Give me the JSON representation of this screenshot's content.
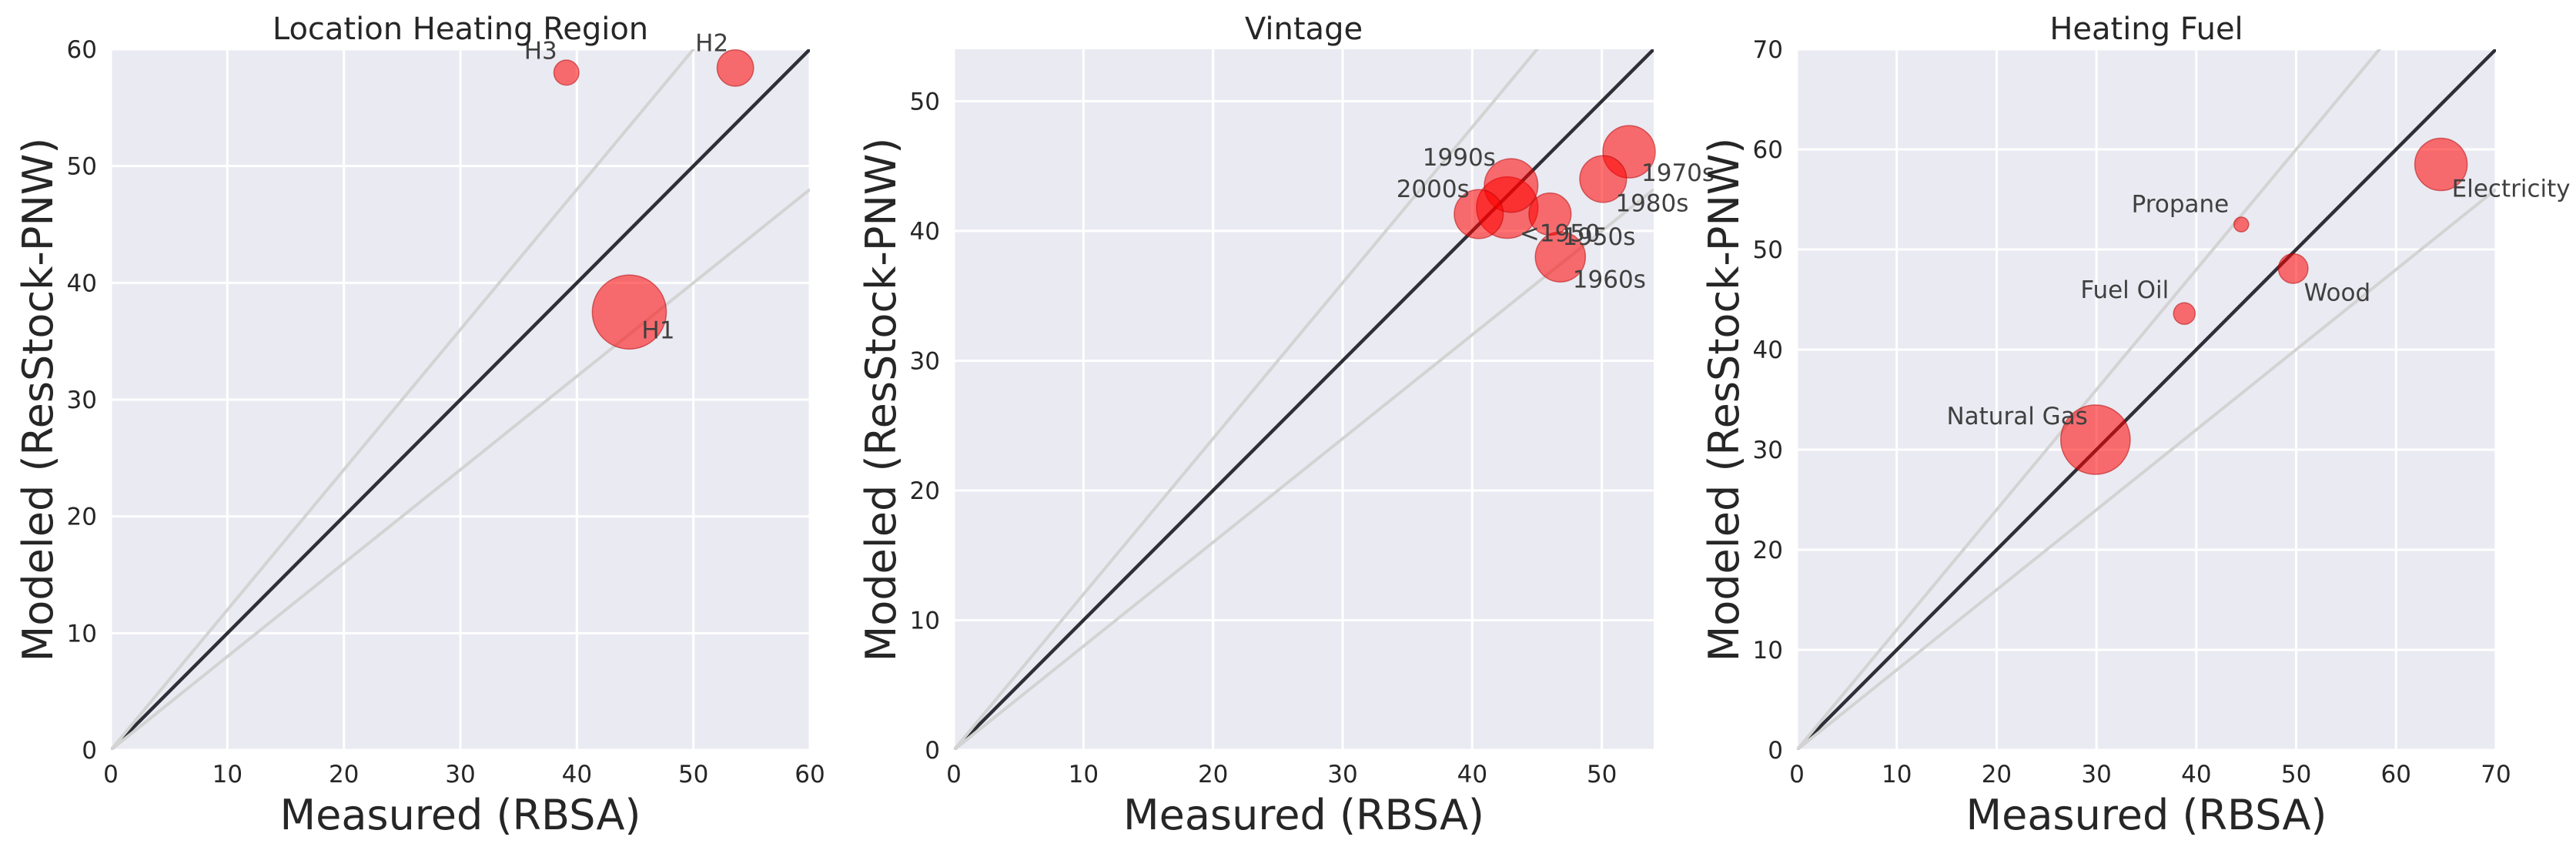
{
  "colors": {
    "point": "#ff0000",
    "axes_background": "#eaeaf2",
    "grid": "#ffffff",
    "identity_line": "#2f2f38",
    "reference_lines": "#d3d3d3"
  },
  "chart_data": [
    {
      "type": "scatter",
      "title": "Location Heating Region",
      "xlabel": "Measured (RBSA)",
      "ylabel": "Modeled (ResStock-PNW)",
      "xlim": [
        0,
        60
      ],
      "ylim": [
        0,
        60
      ],
      "xticks": [
        0,
        10,
        20,
        30,
        40,
        50,
        60
      ],
      "yticks": [
        0,
        10,
        20,
        30,
        40,
        50,
        60
      ],
      "grid": true,
      "reference_lines": [
        {
          "slope": 1
        },
        {
          "slope": 1.2
        },
        {
          "slope": 0.8
        }
      ],
      "points": [
        {
          "label": "H1",
          "x": 44.5,
          "y": 37.5,
          "size": 6.5
        },
        {
          "label": "H2",
          "x": 53.6,
          "y": 58.4,
          "size": 3.2
        },
        {
          "label": "H3",
          "x": 39.1,
          "y": 58.0,
          "size": 2.2
        }
      ]
    },
    {
      "type": "scatter",
      "title": "Vintage",
      "xlabel": "Measured (RBSA)",
      "ylabel": "Modeled (ResStock-PNW)",
      "xlim": [
        0,
        54
      ],
      "ylim": [
        0,
        54
      ],
      "xticks": [
        0,
        10,
        20,
        30,
        40,
        50
      ],
      "yticks": [
        0,
        10,
        20,
        30,
        40,
        50
      ],
      "grid": true,
      "reference_lines": [
        {
          "slope": 1
        },
        {
          "slope": 1.2
        },
        {
          "slope": 0.8
        }
      ],
      "points": [
        {
          "label": "1970s",
          "x": 52.1,
          "y": 46.1,
          "size": 4.6
        },
        {
          "label": "1980s",
          "x": 50.1,
          "y": 44.0,
          "size": 4.1
        },
        {
          "label": "1990s",
          "x": 43.0,
          "y": 43.5,
          "size": 4.7
        },
        {
          "label": "2000s",
          "x": 40.5,
          "y": 41.3,
          "size": 4.3
        },
        {
          "label": "<1950",
          "x": 42.7,
          "y": 41.8,
          "size": 5.4
        },
        {
          "label": "1950s",
          "x": 46.0,
          "y": 41.3,
          "size": 3.7
        },
        {
          "label": "1960s",
          "x": 46.8,
          "y": 38.0,
          "size": 4.4
        }
      ]
    },
    {
      "type": "scatter",
      "title": "Heating Fuel",
      "xlabel": "Measured (RBSA)",
      "ylabel": "Modeled (ResStock-PNW)",
      "xlim": [
        0,
        70
      ],
      "ylim": [
        0,
        70
      ],
      "xticks": [
        0,
        10,
        20,
        30,
        40,
        50,
        60,
        70
      ],
      "yticks": [
        0,
        10,
        20,
        30,
        40,
        50,
        60,
        70
      ],
      "grid": true,
      "reference_lines": [
        {
          "slope": 1
        },
        {
          "slope": 1.2
        },
        {
          "slope": 0.8
        }
      ],
      "points": [
        {
          "label": "Electricity",
          "x": 64.5,
          "y": 58.5,
          "size": 4.6
        },
        {
          "label": "Propane",
          "x": 44.5,
          "y": 52.5,
          "size": 1.3
        },
        {
          "label": "Wood",
          "x": 49.7,
          "y": 48.1,
          "size": 2.6
        },
        {
          "label": "Fuel Oil",
          "x": 38.8,
          "y": 43.6,
          "size": 1.9
        },
        {
          "label": "Natural Gas",
          "x": 29.9,
          "y": 31.0,
          "size": 6.1
        }
      ]
    }
  ]
}
